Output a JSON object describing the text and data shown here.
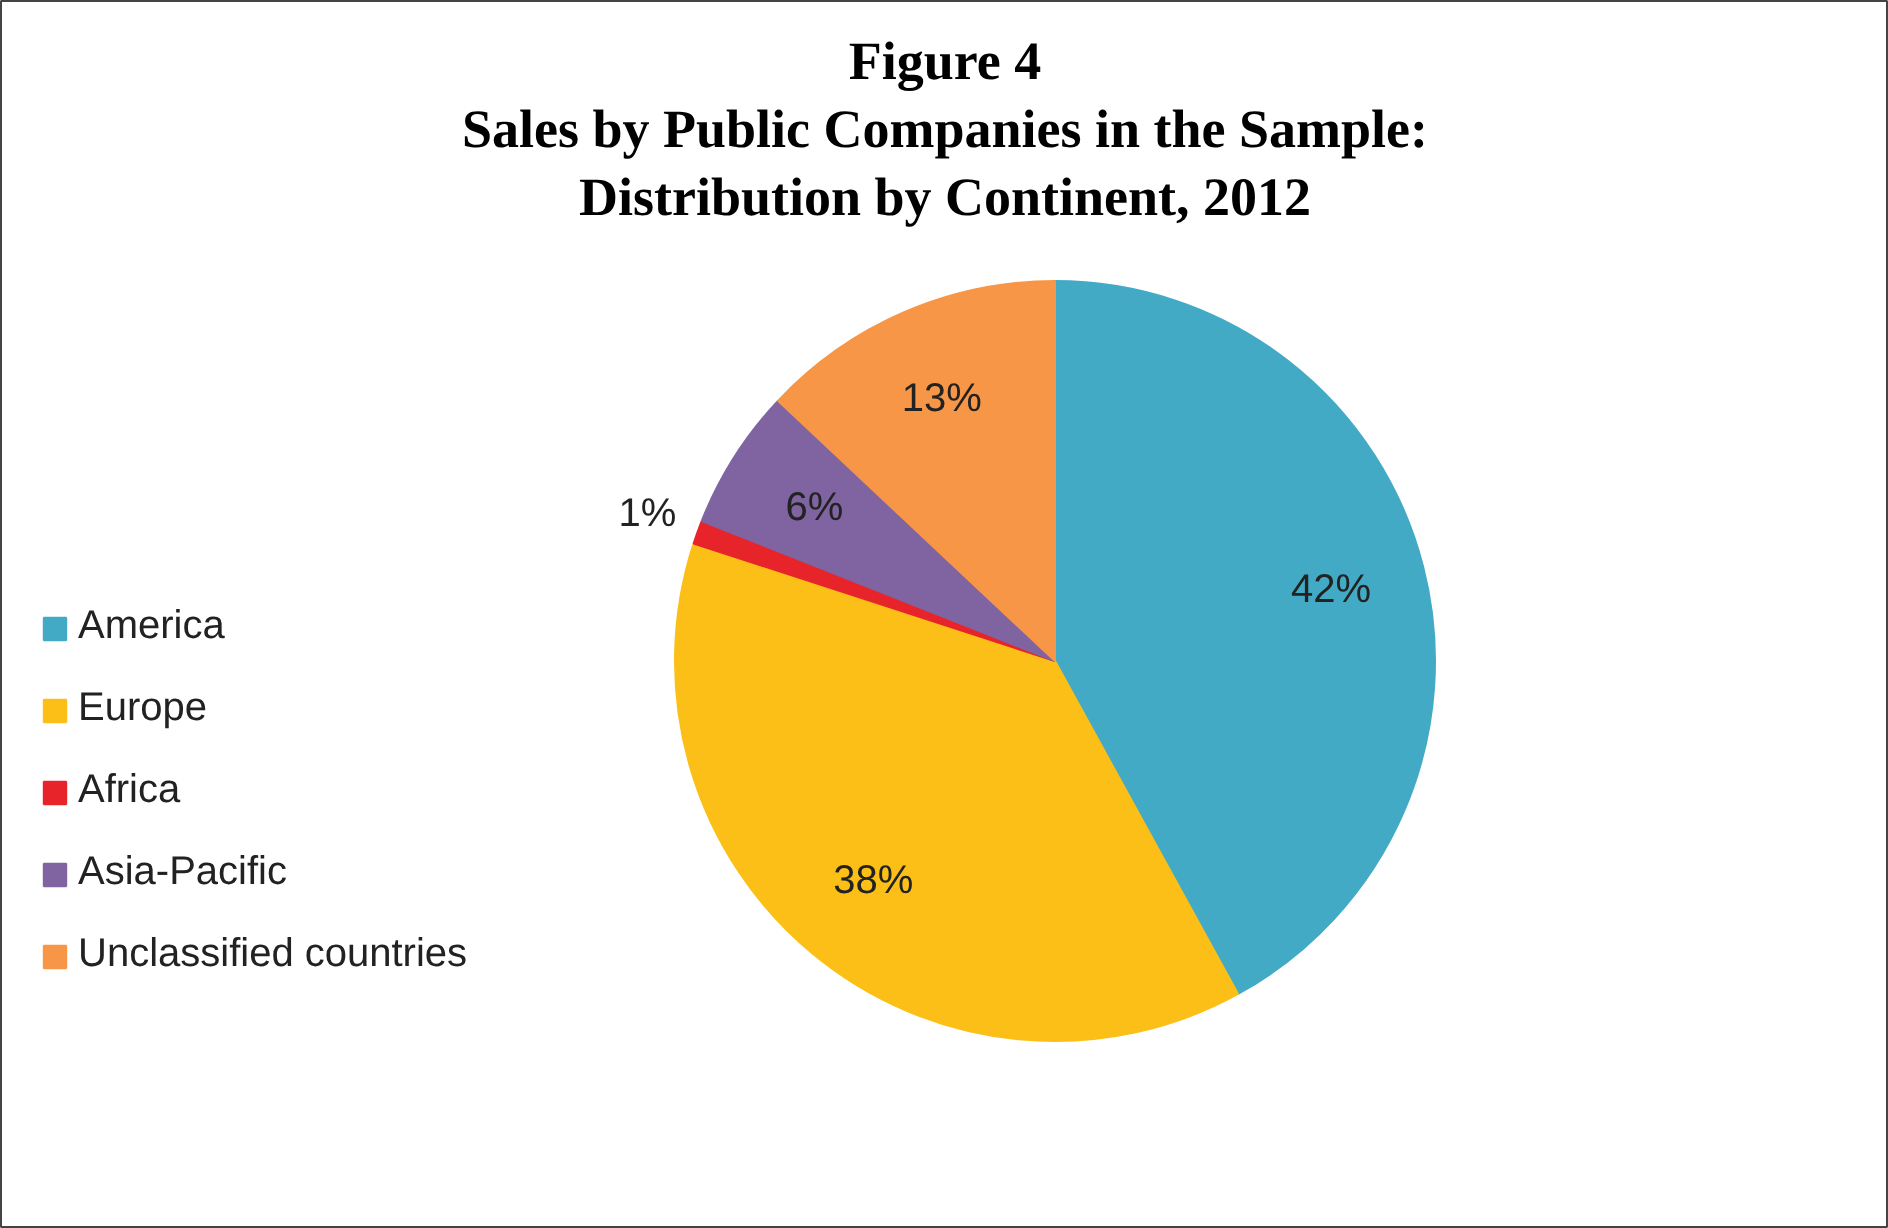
{
  "chart_data": {
    "type": "pie",
    "title": "Figure 4\nSales by Public Companies in the Sample:\nDistribution by Continent, 2012",
    "categories": [
      "America",
      "Europe",
      "Africa",
      "Asia-Pacific",
      "Unclassified countries"
    ],
    "values": [
      42,
      38,
      1,
      6,
      13
    ],
    "colors": [
      "#43aac6",
      "#fbbf17",
      "#e8242b",
      "#8064a2",
      "#f79646"
    ],
    "value_labels": [
      "42%",
      "38%",
      "1%",
      "6%",
      "13%"
    ],
    "legend": "left"
  }
}
